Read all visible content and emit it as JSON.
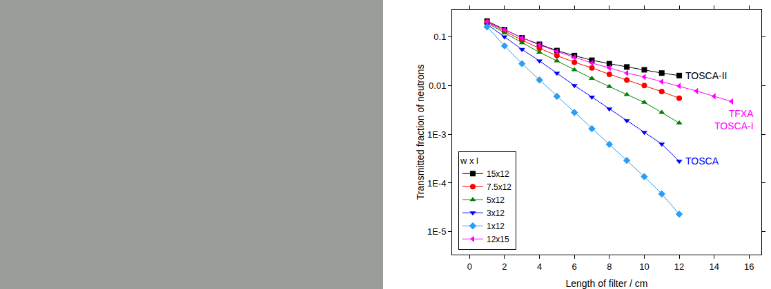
{
  "chart_data": {
    "type": "line",
    "x_label": "Length of filter / cm",
    "y_label": "Transmitted fraction of neutrons",
    "log": "y",
    "grid": false,
    "legend": "bottom left",
    "legend_title": "w x l",
    "xlim": [
      -1,
      16.7
    ],
    "xticks": [
      0,
      2,
      4,
      6,
      8,
      10,
      12,
      14,
      16
    ],
    "ylim": [
      3.4e-06,
      0.36
    ],
    "yticks": [
      0.1,
      0.01,
      {
        "value": 0.001,
        "label": "1E-3"
      },
      {
        "value": 0.0001,
        "label": "1E-4"
      },
      {
        "value": 1e-05,
        "label": "1E-5"
      }
    ],
    "series": [
      {
        "name": "15x12",
        "color": "#000000",
        "marker": "square",
        "x": [
          1,
          2,
          3,
          4,
          5,
          6,
          7,
          8,
          9,
          10,
          11,
          12
        ],
        "values": [
          0.21,
          0.14,
          0.095,
          0.07,
          0.052,
          0.041,
          0.033,
          0.028,
          0.024,
          0.021,
          0.018,
          0.016
        ]
      },
      {
        "name": "7.5x12",
        "color": "#ff0000",
        "marker": "circle",
        "x": [
          1,
          2,
          3,
          4,
          5,
          6,
          7,
          8,
          9,
          10,
          11,
          12
        ],
        "values": [
          0.2,
          0.13,
          0.085,
          0.058,
          0.041,
          0.03,
          0.023,
          0.017,
          0.013,
          0.01,
          0.0075,
          0.0055
        ]
      },
      {
        "name": "5x12",
        "color": "#008000",
        "marker": "triangle-up",
        "x": [
          1,
          2,
          3,
          4,
          5,
          6,
          7,
          8,
          9,
          10,
          11,
          12
        ],
        "values": [
          0.19,
          0.12,
          0.075,
          0.048,
          0.032,
          0.021,
          0.014,
          0.0095,
          0.0065,
          0.0045,
          0.0028,
          0.0017
        ]
      },
      {
        "name": "3x12",
        "color": "#0000ff",
        "marker": "triangle-down",
        "x": [
          1,
          2,
          3,
          4,
          5,
          6,
          7,
          8,
          9,
          10,
          11,
          12
        ],
        "values": [
          0.18,
          0.1,
          0.055,
          0.032,
          0.018,
          0.01,
          0.0058,
          0.0033,
          0.0019,
          0.0011,
          0.00063,
          0.00028
        ]
      },
      {
        "name": "1x12",
        "color": "#2a9df4",
        "marker": "diamond",
        "x": [
          1,
          2,
          3,
          4,
          5,
          6,
          7,
          8,
          9,
          10,
          11,
          12
        ],
        "values": [
          0.16,
          0.065,
          0.028,
          0.013,
          0.006,
          0.0028,
          0.0013,
          0.00062,
          0.00029,
          0.000135,
          6e-05,
          2.3e-05
        ]
      },
      {
        "name": "12x15",
        "color": "#ff00ff",
        "marker": "triangle-left",
        "x": [
          1,
          2,
          3,
          4,
          5,
          6,
          7,
          8,
          9,
          10,
          11,
          12,
          13,
          14,
          15
        ],
        "values": [
          0.2,
          0.14,
          0.095,
          0.068,
          0.05,
          0.038,
          0.029,
          0.023,
          0.018,
          0.015,
          0.012,
          0.0098,
          0.0077,
          0.006,
          0.0047
        ]
      }
    ],
    "annotations": [
      {
        "text": [
          "TOSCA-II"
        ],
        "color": "#000000",
        "series": "15x12"
      },
      {
        "text": [
          "TFXA",
          "TOSCA-I"
        ],
        "color": "#ff00ff",
        "series": "12x15"
      },
      {
        "text": [
          "TOSCA"
        ],
        "color": "#0000ff",
        "series": "3x12"
      }
    ]
  }
}
